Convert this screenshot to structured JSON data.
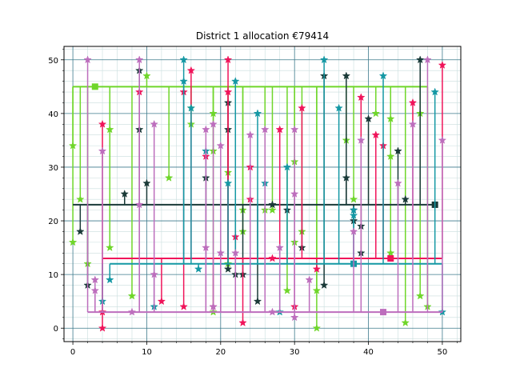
{
  "chart_data": {
    "type": "line",
    "title": "District 1 allocation €79414",
    "xlabel": "",
    "ylabel": "",
    "xlim": [
      -1.2,
      52.5
    ],
    "ylim": [
      -2.5,
      52.5
    ],
    "x_ticks": [
      0,
      10,
      20,
      30,
      40,
      50
    ],
    "y_ticks": [
      0,
      10,
      20,
      30,
      40,
      50
    ],
    "grid": true,
    "minor_grid": true,
    "colors": {
      "grid_major": "#3d7a8c",
      "grid_minor": "#c9dede"
    },
    "series": [
      {
        "color": "#6fd62a",
        "hub": [
          3,
          45
        ],
        "bus_x": [
          0,
          48
        ],
        "points": [
          [
            0,
            16
          ],
          [
            0,
            34
          ],
          [
            1,
            24
          ],
          [
            2,
            12
          ],
          [
            5,
            15
          ],
          [
            5,
            37
          ],
          [
            8,
            6
          ],
          [
            10,
            47
          ],
          [
            13,
            28
          ],
          [
            16,
            38
          ],
          [
            16,
            41
          ],
          [
            19,
            3
          ],
          [
            19,
            33
          ],
          [
            19,
            40
          ],
          [
            21,
            12
          ],
          [
            21,
            29
          ],
          [
            23,
            18
          ],
          [
            23,
            22
          ],
          [
            26,
            22
          ],
          [
            27,
            22
          ],
          [
            29,
            7
          ],
          [
            30,
            16
          ],
          [
            30,
            31
          ],
          [
            31,
            18
          ],
          [
            33,
            0
          ],
          [
            33,
            7
          ],
          [
            37,
            35
          ],
          [
            38,
            24
          ],
          [
            41,
            40
          ],
          [
            43,
            14
          ],
          [
            43,
            32
          ],
          [
            43,
            39
          ],
          [
            45,
            1
          ],
          [
            47,
            6
          ],
          [
            47,
            40
          ],
          [
            48,
            4
          ]
        ]
      },
      {
        "color": "#1a3a38",
        "hub": [
          49,
          23
        ],
        "bus_x": [
          0,
          49
        ],
        "points": [
          [
            1,
            18
          ],
          [
            2,
            8
          ],
          [
            7,
            25
          ],
          [
            9,
            37
          ],
          [
            9,
            48
          ],
          [
            10,
            27
          ],
          [
            18,
            28
          ],
          [
            21,
            11
          ],
          [
            21,
            37
          ],
          [
            21,
            42
          ],
          [
            22,
            10
          ],
          [
            23,
            10
          ],
          [
            25,
            5
          ],
          [
            27,
            23
          ],
          [
            29,
            22
          ],
          [
            31,
            15
          ],
          [
            34,
            8
          ],
          [
            34,
            47
          ],
          [
            37,
            28
          ],
          [
            37,
            47
          ],
          [
            38,
            22
          ],
          [
            38,
            20
          ],
          [
            39,
            14
          ],
          [
            39,
            19
          ],
          [
            40,
            39
          ],
          [
            44,
            33
          ],
          [
            45,
            24
          ],
          [
            47,
            50
          ]
        ]
      },
      {
        "color": "#f0145a",
        "hub": [
          43,
          13
        ],
        "bus_x": [
          4,
          50
        ],
        "points": [
          [
            4,
            0
          ],
          [
            4,
            3
          ],
          [
            4,
            38
          ],
          [
            9,
            44
          ],
          [
            12,
            5
          ],
          [
            15,
            4
          ],
          [
            15,
            44
          ],
          [
            16,
            48
          ],
          [
            18,
            32
          ],
          [
            19,
            4
          ],
          [
            21,
            44
          ],
          [
            21,
            50
          ],
          [
            22,
            17
          ],
          [
            23,
            1
          ],
          [
            24,
            24
          ],
          [
            24,
            30
          ],
          [
            27,
            13
          ],
          [
            28,
            37
          ],
          [
            30,
            4
          ],
          [
            31,
            41
          ],
          [
            33,
            11
          ],
          [
            39,
            43
          ],
          [
            41,
            36
          ],
          [
            42,
            34
          ],
          [
            46,
            42
          ],
          [
            50,
            49
          ]
        ]
      },
      {
        "color": "#1498a4",
        "hub": [
          38,
          12
        ],
        "bus_x": [
          5,
          50
        ],
        "points": [
          [
            4,
            5
          ],
          [
            5,
            9
          ],
          [
            11,
            4
          ],
          [
            15,
            46
          ],
          [
            15,
            50
          ],
          [
            16,
            41
          ],
          [
            17,
            11
          ],
          [
            18,
            33
          ],
          [
            21,
            27
          ],
          [
            22,
            46
          ],
          [
            25,
            40
          ],
          [
            26,
            27
          ],
          [
            28,
            3
          ],
          [
            29,
            30
          ],
          [
            34,
            50
          ],
          [
            36,
            41
          ],
          [
            38,
            21
          ],
          [
            38,
            22
          ],
          [
            42,
            47
          ],
          [
            49,
            44
          ],
          [
            50,
            3
          ]
        ]
      },
      {
        "color": "#bd6ebd",
        "hub": [
          42,
          3
        ],
        "bus_x": [
          2,
          50
        ],
        "points": [
          [
            2,
            50
          ],
          [
            3,
            9
          ],
          [
            3,
            7
          ],
          [
            4,
            33
          ],
          [
            8,
            3
          ],
          [
            9,
            23
          ],
          [
            9,
            50
          ],
          [
            11,
            10
          ],
          [
            11,
            38
          ],
          [
            18,
            15
          ],
          [
            18,
            37
          ],
          [
            19,
            4
          ],
          [
            19,
            38
          ],
          [
            20,
            14
          ],
          [
            20,
            34
          ],
          [
            22,
            14
          ],
          [
            24,
            36
          ],
          [
            26,
            37
          ],
          [
            27,
            3
          ],
          [
            28,
            15
          ],
          [
            30,
            2
          ],
          [
            30,
            25
          ],
          [
            30,
            37
          ],
          [
            32,
            9
          ],
          [
            38,
            18
          ],
          [
            39,
            35
          ],
          [
            44,
            27
          ],
          [
            46,
            38
          ],
          [
            48,
            50
          ],
          [
            50,
            35
          ]
        ]
      }
    ]
  }
}
